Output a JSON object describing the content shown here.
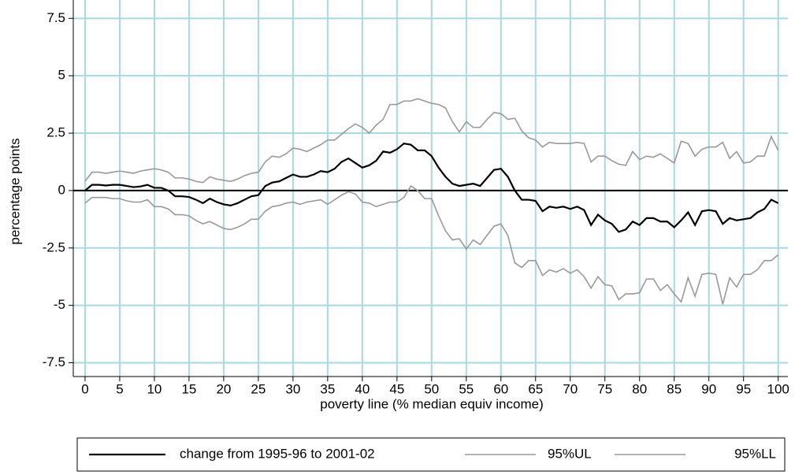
{
  "chart_data": {
    "type": "line",
    "xlabel": "poverty line (% median equiv income)",
    "ylabel": "percentage points",
    "x": [
      0,
      1,
      2,
      3,
      4,
      5,
      6,
      7,
      8,
      9,
      10,
      11,
      12,
      13,
      14,
      15,
      16,
      17,
      18,
      19,
      20,
      21,
      22,
      23,
      24,
      25,
      26,
      27,
      28,
      29,
      30,
      31,
      32,
      33,
      34,
      35,
      36,
      37,
      38,
      39,
      40,
      41,
      42,
      43,
      44,
      45,
      46,
      47,
      48,
      49,
      50,
      51,
      52,
      53,
      54,
      55,
      56,
      57,
      58,
      59,
      60,
      61,
      62,
      63,
      64,
      65,
      66,
      67,
      68,
      69,
      70,
      71,
      72,
      73,
      74,
      75,
      76,
      77,
      78,
      79,
      80,
      81,
      82,
      83,
      84,
      85,
      86,
      87,
      88,
      89,
      90,
      91,
      92,
      93,
      94,
      95,
      96,
      97,
      98,
      99,
      100
    ],
    "series": [
      {
        "name": "change from 1995-96 to 2001-02",
        "color": "#000000",
        "values": [
          0,
          0.25,
          0.25,
          0.22,
          0.25,
          0.25,
          0.2,
          0.15,
          0.18,
          0.25,
          0.12,
          0.12,
          0,
          -0.25,
          -0.25,
          -0.28,
          -0.4,
          -0.55,
          -0.35,
          -0.5,
          -0.6,
          -0.65,
          -0.55,
          -0.4,
          -0.25,
          -0.2,
          0.2,
          0.35,
          0.4,
          0.55,
          0.7,
          0.6,
          0.6,
          0.7,
          0.85,
          0.8,
          0.95,
          1.25,
          1.4,
          1.2,
          1.0,
          1.1,
          1.3,
          1.7,
          1.65,
          1.8,
          2.05,
          2.0,
          1.75,
          1.75,
          1.5,
          1.0,
          0.6,
          0.3,
          0.2,
          0.25,
          0.3,
          0.2,
          0.55,
          0.9,
          0.95,
          0.6,
          0.0,
          -0.4,
          -0.4,
          -0.45,
          -0.9,
          -0.7,
          -0.75,
          -0.7,
          -0.8,
          -0.7,
          -0.85,
          -1.5,
          -1.05,
          -1.3,
          -1.45,
          -1.8,
          -1.7,
          -1.35,
          -1.5,
          -1.2,
          -1.2,
          -1.35,
          -1.35,
          -1.6,
          -1.3,
          -0.95,
          -1.5,
          -0.9,
          -0.85,
          -0.9,
          -1.45,
          -1.2,
          -1.3,
          -1.25,
          -1.2,
          -0.95,
          -0.8,
          -0.4,
          -0.55
        ]
      },
      {
        "name": "95%UL",
        "color": "#999999",
        "values": [
          0.4,
          0.8,
          0.8,
          0.75,
          0.8,
          0.85,
          0.8,
          0.75,
          0.85,
          0.9,
          0.95,
          0.9,
          0.8,
          0.55,
          0.55,
          0.5,
          0.4,
          0.35,
          0.6,
          0.5,
          0.45,
          0.4,
          0.5,
          0.65,
          0.75,
          0.8,
          1.25,
          1.5,
          1.45,
          1.6,
          1.85,
          1.8,
          1.7,
          1.85,
          2.0,
          2.2,
          2.2,
          2.45,
          2.7,
          2.9,
          2.75,
          2.5,
          2.85,
          3.1,
          3.75,
          3.75,
          3.9,
          3.9,
          4.0,
          3.9,
          3.8,
          3.75,
          3.6,
          3.0,
          2.55,
          3.0,
          2.75,
          2.75,
          3.1,
          3.4,
          3.35,
          3.1,
          3.15,
          2.6,
          2.3,
          2.2,
          1.9,
          2.1,
          2.05,
          2.05,
          2.05,
          2.1,
          2.05,
          1.25,
          1.5,
          1.5,
          1.3,
          1.15,
          1.1,
          1.7,
          1.35,
          1.5,
          1.45,
          1.6,
          1.4,
          1.2,
          2.15,
          2.05,
          1.5,
          1.8,
          1.9,
          1.9,
          2.1,
          1.4,
          1.7,
          1.2,
          1.25,
          1.5,
          1.5,
          2.35,
          1.75
        ]
      },
      {
        "name": "95%LL",
        "color": "#999999",
        "values": [
          -0.55,
          -0.3,
          -0.3,
          -0.3,
          -0.35,
          -0.35,
          -0.45,
          -0.5,
          -0.5,
          -0.4,
          -0.7,
          -0.7,
          -0.8,
          -1.05,
          -1.05,
          -1.1,
          -1.3,
          -1.45,
          -1.35,
          -1.5,
          -1.65,
          -1.7,
          -1.6,
          -1.45,
          -1.25,
          -1.25,
          -0.9,
          -0.7,
          -0.65,
          -0.55,
          -0.5,
          -0.6,
          -0.5,
          -0.45,
          -0.4,
          -0.6,
          -0.4,
          -0.2,
          -0.05,
          -0.15,
          -0.5,
          -0.55,
          -0.7,
          -0.6,
          -0.5,
          -0.5,
          -0.3,
          0.2,
          0.0,
          -0.35,
          -0.35,
          -1.1,
          -1.75,
          -2.15,
          -2.1,
          -2.55,
          -2.15,
          -2.35,
          -1.95,
          -1.55,
          -1.45,
          -1.95,
          -3.15,
          -3.35,
          -3.05,
          -3.05,
          -3.7,
          -3.45,
          -3.55,
          -3.4,
          -3.6,
          -3.45,
          -3.75,
          -4.25,
          -3.75,
          -4.1,
          -4.15,
          -4.75,
          -4.5,
          -4.5,
          -4.45,
          -3.85,
          -3.85,
          -4.35,
          -4.1,
          -4.5,
          -4.85,
          -3.8,
          -4.6,
          -3.65,
          -3.6,
          -3.65,
          -4.95,
          -3.8,
          -4.2,
          -3.65,
          -3.65,
          -3.45,
          -3.05,
          -3.05,
          -2.8
        ]
      }
    ],
    "xlim": [
      -1.7,
      101.4
    ],
    "ylim": [
      -8.1,
      8.3
    ],
    "xticks": [
      0,
      5,
      10,
      15,
      20,
      25,
      30,
      35,
      40,
      45,
      50,
      55,
      60,
      65,
      70,
      75,
      80,
      85,
      90,
      95,
      100
    ],
    "yticks": [
      -7.5,
      -5,
      -2.5,
      0,
      2.5,
      5,
      7.5
    ],
    "yline": 0,
    "grid": true,
    "grid_color": "#a8d8e0",
    "legend": "bottom"
  }
}
